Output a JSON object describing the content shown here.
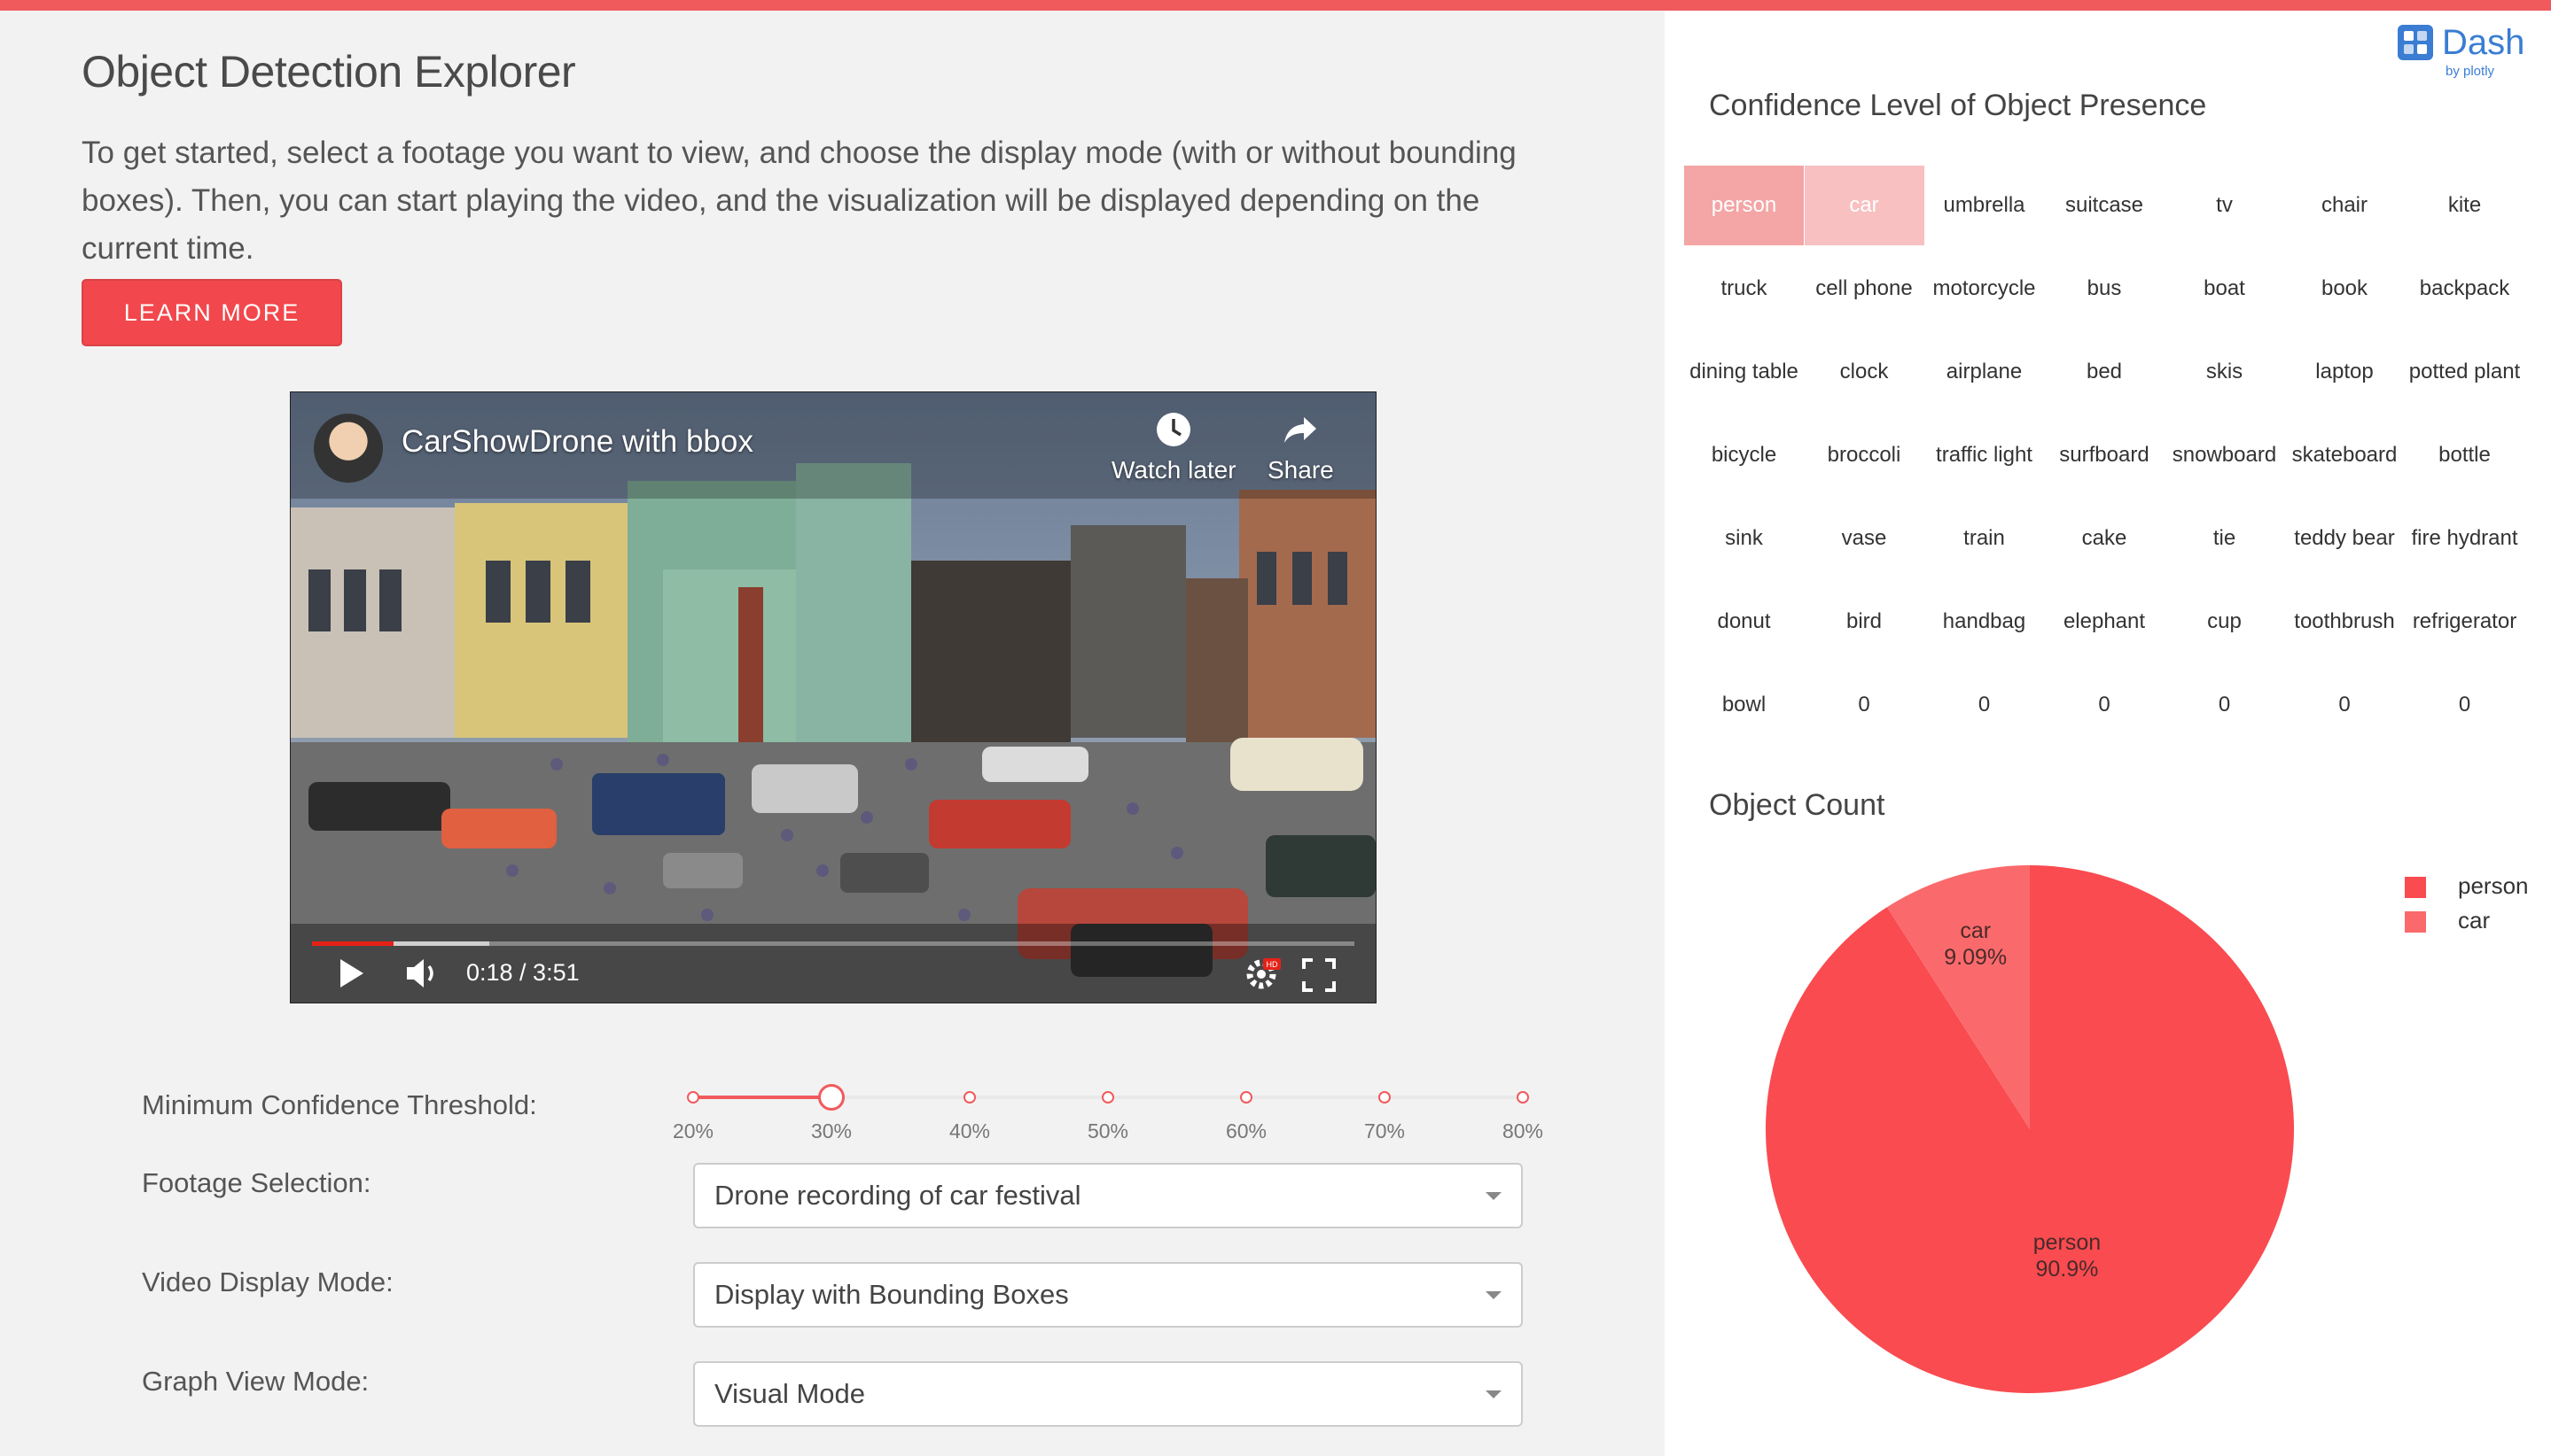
{
  "app": {
    "title": "Object Detection Explorer",
    "intro": "To get started, select a footage you want to view, and choose the display mode (with or without bounding boxes). Then, you can start playing the video, and the visualization will be displayed depending on the current time.",
    "learn_more_label": "LEARN MORE",
    "accent_color": "#f05a5d"
  },
  "video": {
    "title": "CarShowDrone with bbox",
    "watch_later_label": "Watch later",
    "share_label": "Share",
    "time": "0:18 / 3:51",
    "progress_played": 0.078,
    "progress_buffered": 0.17,
    "icons": [
      "clock-icon",
      "share-icon",
      "play-icon",
      "volume-icon",
      "settings-icon",
      "hd-badge",
      "fullscreen-icon"
    ]
  },
  "controls": {
    "threshold_label": "Minimum Confidence Threshold:",
    "threshold_marks": [
      "20%",
      "30%",
      "40%",
      "50%",
      "60%",
      "70%",
      "80%"
    ],
    "threshold_value": 0.3,
    "threshold_min": 0.2,
    "threshold_max": 0.8,
    "footage_label": "Footage Selection:",
    "footage_value": "Drone recording of car festival",
    "display_label": "Video Display Mode:",
    "display_value": "Display with Bounding Boxes",
    "graph_label": "Graph View Mode:",
    "graph_value": "Visual Mode"
  },
  "dash_logo": {
    "word": "Dash",
    "by": "by plotly",
    "color": "#3a7dd3"
  },
  "heatmap": {
    "title": "Confidence Level of Object Presence",
    "rows": [
      [
        "person",
        "car",
        "umbrella",
        "suitcase",
        "tv",
        "chair",
        "kite"
      ],
      [
        "truck",
        "cell phone",
        "motorcycle",
        "bus",
        "boat",
        "book",
        "backpack"
      ],
      [
        "dining table",
        "clock",
        "airplane",
        "bed",
        "skis",
        "laptop",
        "potted plant"
      ],
      [
        "bicycle",
        "broccoli",
        "traffic light",
        "surfboard",
        "snowboard",
        "skateboard",
        "bottle"
      ],
      [
        "sink",
        "vase",
        "train",
        "cake",
        "tie",
        "teddy bear",
        "fire hydrant"
      ],
      [
        "donut",
        "bird",
        "handbag",
        "elephant",
        "cup",
        "toothbrush",
        "refrigerator"
      ],
      [
        "bowl",
        "0",
        "0",
        "0",
        "0",
        "0",
        "0"
      ]
    ],
    "highlight": {
      "person": "#f4a5a5",
      "car": "#f8c0c0"
    },
    "highlight_text_color": "#ffffff"
  },
  "chart_data": {
    "type": "pie",
    "title": "Object Count",
    "slices": [
      {
        "label": "person",
        "value": 90.9,
        "display": "90.9%",
        "color": "#f94b50"
      },
      {
        "label": "car",
        "value": 9.09,
        "display": "9.09%",
        "color": "#fa6a6c"
      }
    ],
    "legend": [
      "person",
      "car"
    ],
    "legend_position": "top-right"
  }
}
